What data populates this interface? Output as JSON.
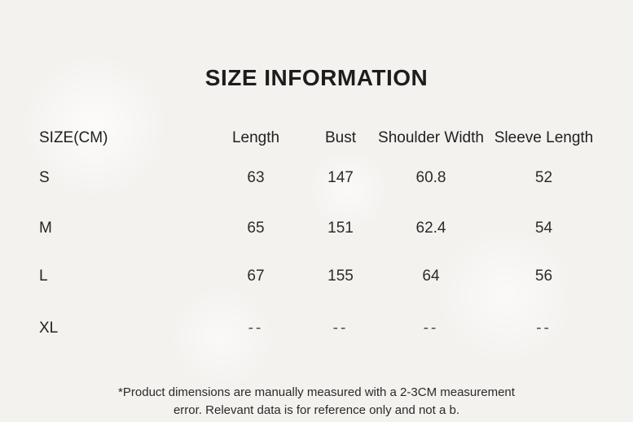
{
  "title": "SIZE INFORMATION",
  "table": {
    "size_header": "SIZE(CM)",
    "columns": [
      "Length",
      "Bust",
      "Shoulder Width",
      "Sleeve Length"
    ],
    "rows": [
      {
        "size": "S",
        "values": [
          "63",
          "147",
          "60.8",
          "52"
        ]
      },
      {
        "size": "M",
        "values": [
          "65",
          "151",
          "62.4",
          "54"
        ]
      },
      {
        "size": "L",
        "values": [
          "67",
          "155",
          "64",
          "56"
        ]
      },
      {
        "size": "XL",
        "values": [
          "--",
          "--",
          "--",
          "--"
        ]
      }
    ]
  },
  "footnote": {
    "line1": "*Product dimensions are manually measured with a 2-3CM measurement",
    "line2": "error. Relevant data is for reference only and not a b."
  },
  "colors": {
    "background": "#f4f2ef",
    "text": "#262626"
  }
}
